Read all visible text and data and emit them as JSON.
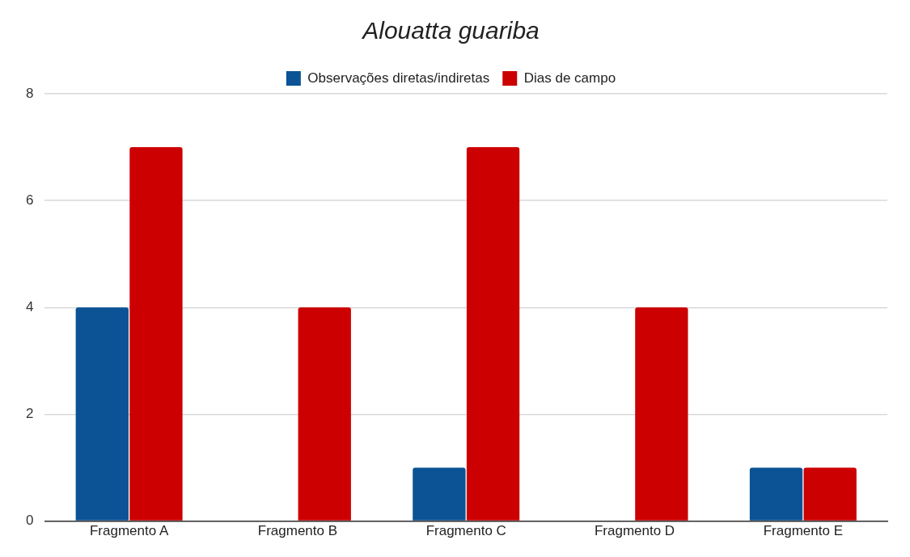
{
  "chart_data": {
    "type": "bar",
    "title": "Alouatta guariba",
    "categories": [
      "Fragmento A",
      "Fragmento B",
      "Fragmento C",
      "Fragmento D",
      "Fragmento E"
    ],
    "series": [
      {
        "name": "Observações diretas/indiretas",
        "color": "#0b5394",
        "values": [
          4,
          0,
          1,
          0,
          1
        ]
      },
      {
        "name": "Dias de campo",
        "color": "#cc0000",
        "values": [
          7,
          4,
          7,
          4,
          1
        ]
      }
    ],
    "ylim": [
      0,
      8
    ],
    "yticks": [
      0,
      2,
      4,
      6,
      8
    ],
    "grid": "y",
    "legend": "top"
  }
}
